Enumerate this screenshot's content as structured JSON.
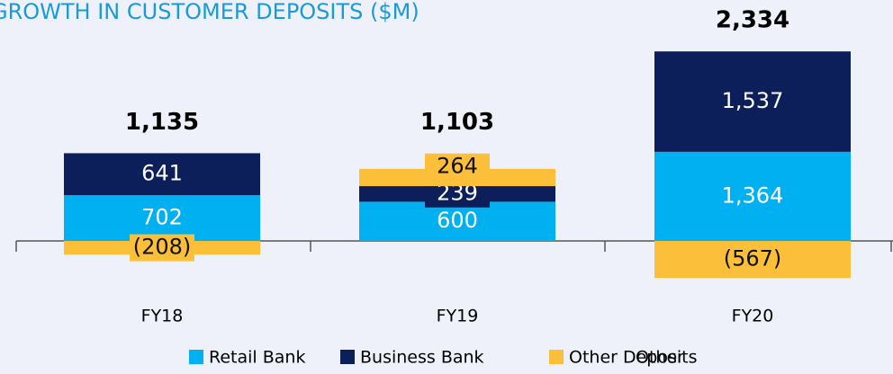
{
  "chart_data": {
    "type": "bar",
    "stacked": true,
    "title": "GROWTH IN CUSTOMER DEPOSITS ($M)",
    "categories": [
      "FY18",
      "FY19",
      "FY20"
    ],
    "series": [
      {
        "name": "Retail Bank",
        "color": "#00b0f0",
        "values": [
          702,
          600,
          1364
        ],
        "value_labels": [
          "702",
          "600",
          "1,364"
        ]
      },
      {
        "name": "Business Bank",
        "color": "#0c1f5b",
        "values": [
          641,
          239,
          1537
        ],
        "value_labels": [
          "641",
          "239",
          "1,537"
        ]
      },
      {
        "name": "Other Deposits",
        "color": "#fbbf3a",
        "values": [
          -208,
          264,
          -567
        ],
        "value_labels": [
          "(208)",
          "264",
          "(567)"
        ]
      },
      {
        "name": "Other",
        "values": [
          null,
          null,
          null
        ]
      }
    ],
    "totals": [
      1135,
      1103,
      2334
    ],
    "total_labels": [
      "1,135",
      "1,103",
      "2,334"
    ]
  }
}
